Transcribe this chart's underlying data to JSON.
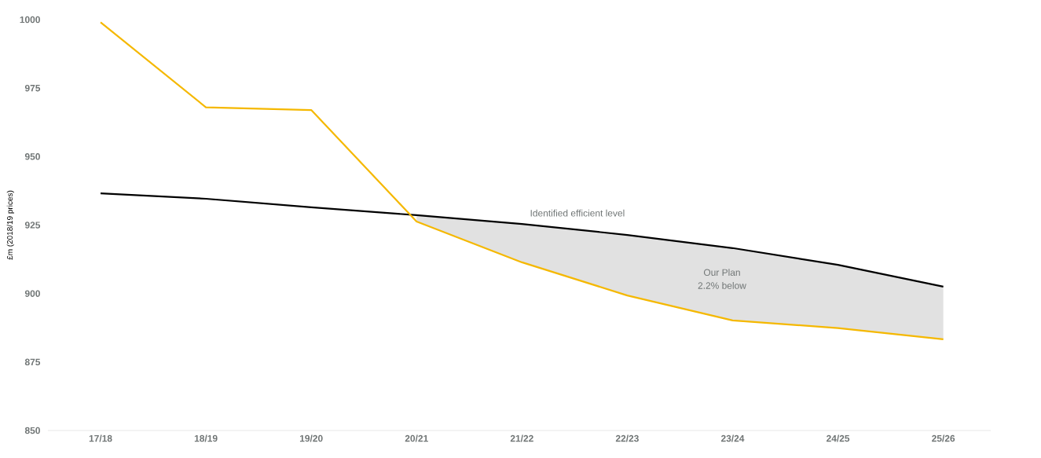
{
  "chart_data": {
    "type": "line",
    "ylabel": "£m (2018/19 prices)",
    "categories": [
      "17/18",
      "18/19",
      "19/20",
      "20/21",
      "21/22",
      "22/23",
      "23/24",
      "24/25",
      "25/26"
    ],
    "series": [
      {
        "name": "Identified efficient level",
        "color": "#000000",
        "values": [
          936.6,
          934.6,
          931.5,
          928.6,
          925.4,
          921.4,
          916.6,
          910.5,
          902.5
        ],
        "lower": [
          null,
          null,
          null,
          926.3,
          911.4,
          899.3,
          890.2,
          887.4,
          883.3
        ],
        "upper": [
          null,
          null,
          null,
          928.6,
          925.4,
          921.4,
          916.6,
          910.5,
          902.5
        ]
      },
      {
        "color": "#f5b800",
        "values": [
          999,
          968,
          967,
          926.3,
          911.4,
          899.3,
          890.2,
          887.4,
          883.3
        ]
      }
    ],
    "annotations": [
      "Our Plan",
      "2.2% below"
    ],
    "ylim": [
      850,
      1000
    ],
    "yticks": [
      850,
      875,
      900,
      925,
      950,
      975,
      1000
    ],
    "grid": false,
    "marker": "none",
    "line_style": "solid"
  }
}
